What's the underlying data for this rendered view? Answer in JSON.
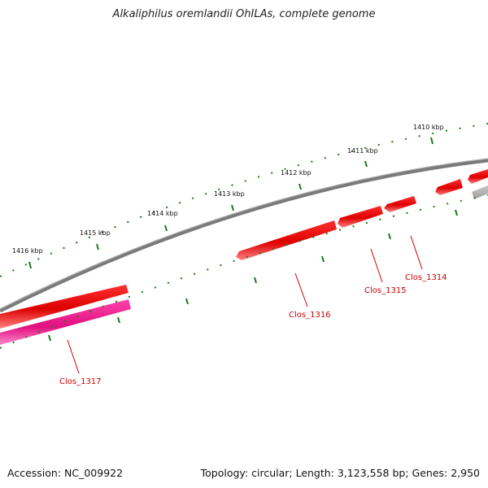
{
  "title": "Alkaliphilus oremlandii OhILAs, complete genome",
  "footer": {
    "accession": "Accession: NC_009922",
    "summary": "Topology: circular; Length: 3,123,558 bp; Genes: 2,950"
  },
  "ruler_labels": [
    "1410 kbp",
    "1411 kbp",
    "1412 kbp",
    "1413 kbp",
    "1414 kbp",
    "1415 kbp",
    "1416 kbp"
  ],
  "genes": [
    {
      "id": "g1314",
      "label": "Clos_1314",
      "color": "#ee0000"
    },
    {
      "id": "g1315",
      "label": "Clos_1315",
      "color": "#ee0000"
    },
    {
      "id": "g1316",
      "label": "Clos_1316",
      "color": "#ee0000"
    },
    {
      "id": "g1317",
      "label": "Clos_1317",
      "color": "#ee0000"
    }
  ],
  "colors": {
    "backbone": "#808080",
    "gene_forward": "#ee0000",
    "gene_pink": "#ee1188",
    "gene_grey": "#b0b0b0",
    "ticks": "#1a7a1a",
    "label": "#cc0000"
  }
}
